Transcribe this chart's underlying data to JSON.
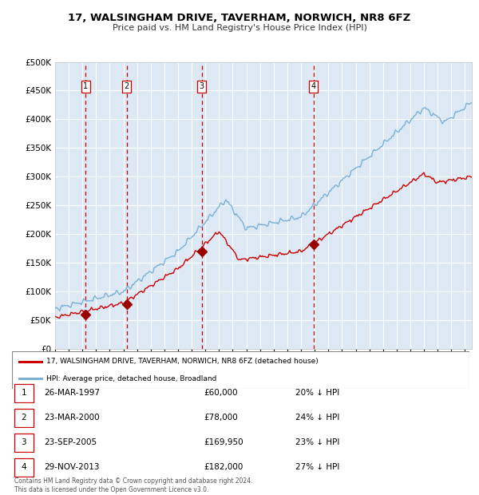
{
  "title": "17, WALSINGHAM DRIVE, TAVERHAM, NORWICH, NR8 6FZ",
  "subtitle": "Price paid vs. HM Land Registry's House Price Index (HPI)",
  "background_color": "#ffffff",
  "plot_bg_color": "#dce9f5",
  "grid_color": "#ffffff",
  "ylim": [
    0,
    500000
  ],
  "yticks": [
    0,
    50000,
    100000,
    150000,
    200000,
    250000,
    300000,
    350000,
    400000,
    450000,
    500000
  ],
  "xlim_start": 1995.0,
  "xlim_end": 2025.5,
  "sale_dates": [
    1997.23,
    2000.23,
    2005.73,
    2013.91
  ],
  "sale_prices": [
    60000,
    78000,
    169950,
    182000
  ],
  "sale_labels": [
    "1",
    "2",
    "3",
    "4"
  ],
  "vline_color": "#cc0000",
  "sale_marker_color": "#990000",
  "hpi_line_color": "#7ab0d4",
  "price_line_color": "#cc0000",
  "legend_label_price": "17, WALSINGHAM DRIVE, TAVERHAM, NORWICH, NR8 6FZ (detached house)",
  "legend_label_hpi": "HPI: Average price, detached house, Broadland",
  "table_rows": [
    [
      "1",
      "26-MAR-1997",
      "£60,000",
      "20% ↓ HPI"
    ],
    [
      "2",
      "23-MAR-2000",
      "£78,000",
      "24% ↓ HPI"
    ],
    [
      "3",
      "23-SEP-2005",
      "£169,950",
      "23% ↓ HPI"
    ],
    [
      "4",
      "29-NOV-2013",
      "£182,000",
      "27% ↓ HPI"
    ]
  ],
  "footnote": "Contains HM Land Registry data © Crown copyright and database right 2024.\nThis data is licensed under the Open Government Licence v3.0.",
  "label_box_color": "#ffffff",
  "label_box_edge": "#cc0000",
  "label_text_color": "#000000",
  "chart_height_ratio": 0.645,
  "info_height_ratio": 0.355
}
